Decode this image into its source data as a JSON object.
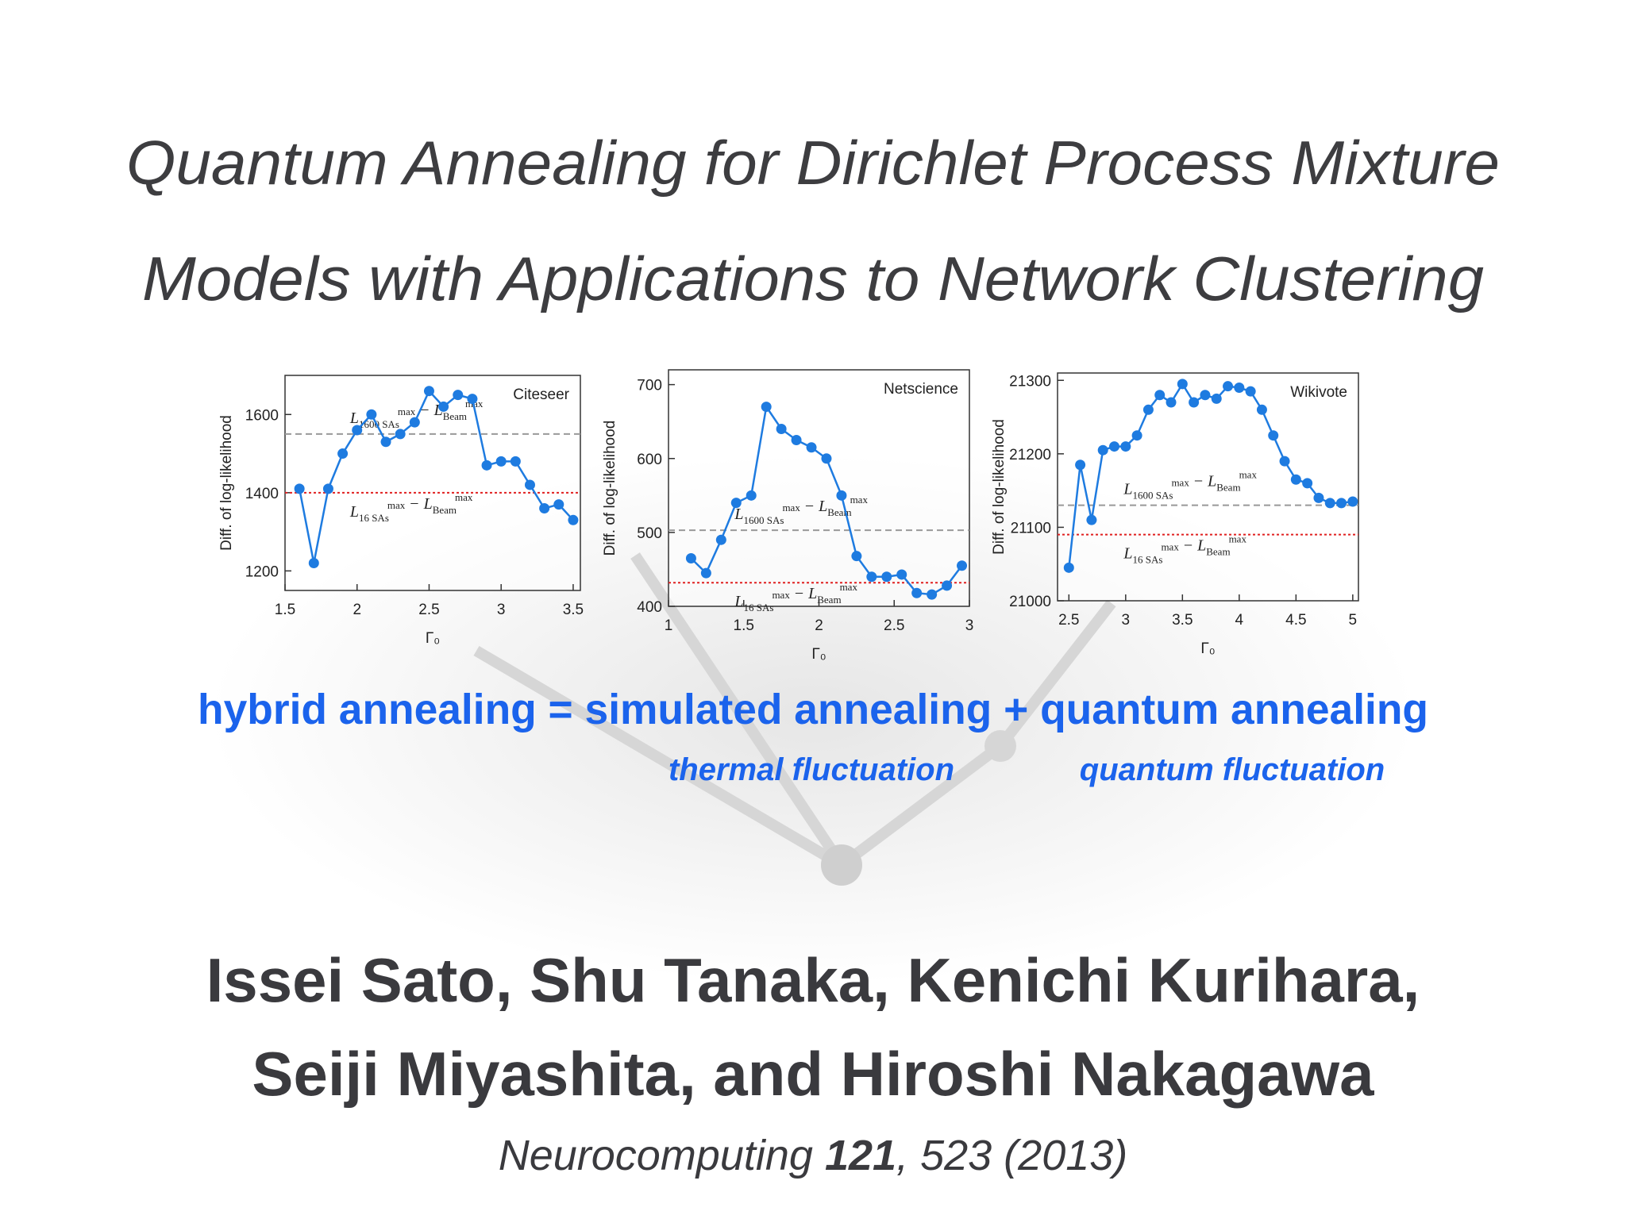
{
  "title": [
    "Quantum Annealing for Dirichlet Process Mixture",
    "Models with Applications to Network Clustering"
  ],
  "chart_data": [
    {
      "type": "line",
      "title": "Citeseer",
      "y_label": "Diff. of log-likelihood",
      "x_label": "Γ₀",
      "x": [
        1.6,
        1.7,
        1.8,
        1.9,
        2.0,
        2.1,
        2.2,
        2.3,
        2.4,
        2.5,
        2.6,
        2.7,
        2.8,
        2.9,
        3.0,
        3.1,
        3.2,
        3.3,
        3.4,
        3.5
      ],
      "series": [
        {
          "color": "#1e7be0",
          "values": [
            1410,
            1220,
            1410,
            1500,
            1560,
            1600,
            1530,
            1550,
            1580,
            1660,
            1620,
            1650,
            1640,
            1470,
            1480,
            1480,
            1420,
            1360,
            1370,
            1330
          ]
        }
      ],
      "xlim": [
        1.5,
        3.55
      ],
      "xticks": [
        1.5,
        2,
        2.5,
        3,
        3.5
      ],
      "ylim": [
        1150,
        1700
      ],
      "yticks": [
        1200,
        1400,
        1600
      ],
      "reference_lines": [
        {
          "value": 1550,
          "color": "#999999",
          "style": "dashed",
          "label": {
            "terms": [
              {
                "symbol": "L",
                "sup": "max",
                "sub": "1600 SAs"
              },
              {
                "symbol": "L",
                "sup": "max",
                "sub": "Beam"
              }
            ],
            "operator": "−"
          }
        },
        {
          "value": 1400,
          "color": "#e02020",
          "style": "dotted",
          "label": {
            "terms": [
              {
                "symbol": "L",
                "sup": "max",
                "sub": "16 SAs"
              },
              {
                "symbol": "L",
                "sup": "max",
                "sub": "Beam"
              }
            ],
            "operator": "−"
          }
        }
      ]
    },
    {
      "type": "line",
      "title": "Netscience",
      "y_label": "Diff. of log-likelihood",
      "x_label": "Γ₀",
      "x": [
        1.15,
        1.25,
        1.35,
        1.45,
        1.55,
        1.65,
        1.75,
        1.85,
        1.95,
        2.05,
        2.15,
        2.25,
        2.35,
        2.45,
        2.55,
        2.65,
        2.75,
        2.85,
        2.95
      ],
      "series": [
        {
          "color": "#1e7be0",
          "values": [
            465,
            445,
            490,
            540,
            550,
            670,
            640,
            625,
            615,
            600,
            550,
            468,
            440,
            440,
            443,
            418,
            416,
            428,
            455
          ]
        }
      ],
      "xlim": [
        1,
        3
      ],
      "xticks": [
        1,
        1.5,
        2,
        2.5,
        3
      ],
      "ylim": [
        400,
        720
      ],
      "yticks": [
        400,
        500,
        600,
        700
      ],
      "reference_lines": [
        {
          "value": 503,
          "color": "#999999",
          "style": "dashed",
          "label": {
            "terms": [
              {
                "symbol": "L",
                "sup": "max",
                "sub": "1600 SAs"
              },
              {
                "symbol": "L",
                "sup": "max",
                "sub": "Beam"
              }
            ],
            "operator": "−"
          }
        },
        {
          "value": 432,
          "color": "#e02020",
          "style": "dotted",
          "label": {
            "terms": [
              {
                "symbol": "L",
                "sup": "max",
                "sub": "16 SAs"
              },
              {
                "symbol": "L",
                "sup": "max",
                "sub": "Beam"
              }
            ],
            "operator": "−"
          }
        }
      ]
    },
    {
      "type": "line",
      "title": "Wikivote",
      "y_label": "Diff. of log-likelihood",
      "x_label": "Γ₀",
      "x": [
        2.5,
        2.6,
        2.7,
        2.8,
        2.9,
        3.0,
        3.1,
        3.2,
        3.3,
        3.4,
        3.5,
        3.6,
        3.7,
        3.8,
        3.9,
        4.0,
        4.1,
        4.2,
        4.3,
        4.4,
        4.5,
        4.6,
        4.7,
        4.8,
        4.9,
        5.0
      ],
      "series": [
        {
          "color": "#1e7be0",
          "values": [
            21045,
            21185,
            21110,
            21205,
            21210,
            21210,
            21225,
            21260,
            21280,
            21270,
            21295,
            21270,
            21280,
            21275,
            21292,
            21290,
            21285,
            21260,
            21225,
            21190,
            21165,
            21160,
            21140,
            21133,
            21133,
            21135
          ]
        }
      ],
      "xlim": [
        2.4,
        5.05
      ],
      "xticks": [
        2.5,
        3,
        3.5,
        4,
        4.5,
        5
      ],
      "ylim": [
        21000,
        21310
      ],
      "yticks": [
        21000,
        21100,
        21200,
        21300
      ],
      "reference_lines": [
        {
          "value": 21130,
          "color": "#999999",
          "style": "dashed",
          "label": {
            "terms": [
              {
                "symbol": "L",
                "sup": "max",
                "sub": "1600 SAs"
              },
              {
                "symbol": "L",
                "sup": "max",
                "sub": "Beam"
              }
            ],
            "operator": "−"
          }
        },
        {
          "value": 21090,
          "color": "#e02020",
          "style": "dotted",
          "label": {
            "terms": [
              {
                "symbol": "L",
                "sup": "max",
                "sub": "16 SAs"
              },
              {
                "symbol": "L",
                "sup": "max",
                "sub": "Beam"
              }
            ],
            "operator": "−"
          }
        }
      ]
    }
  ],
  "equation": {
    "parts": [
      "hybrid annealing",
      "=",
      "simulated annealing",
      "+",
      "quantum annealing"
    ],
    "notes": [
      "thermal fluctuation",
      "quantum fluctuation"
    ]
  },
  "authors": [
    "Issei Sato, Shu Tanaka, Kenichi Kurihara,",
    "Seiji Miyashita, and Hiroshi Nakagawa"
  ],
  "citation": {
    "journal": "Neurocomputing",
    "volume": "121",
    "rest": ", 523 (2013)"
  }
}
